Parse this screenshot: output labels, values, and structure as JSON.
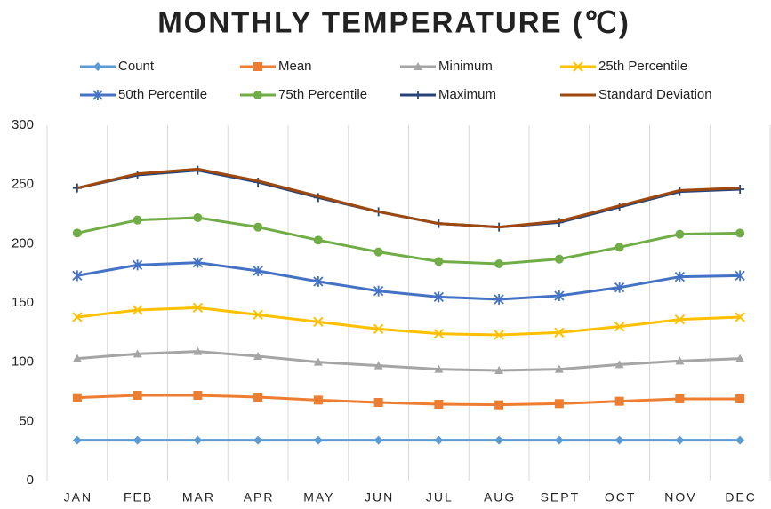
{
  "chart_data": {
    "type": "line",
    "title": "MONTHLY TEMPERATURE (℃)",
    "categories": [
      "JAN",
      "FEB",
      "MAR",
      "APR",
      "MAY",
      "JUN",
      "JUL",
      "AUG",
      "SEPT",
      "OCT",
      "NOV",
      "DEC"
    ],
    "ylim": [
      0,
      300
    ],
    "yticks": [
      0,
      50,
      100,
      150,
      200,
      250,
      300
    ],
    "grid": true,
    "series": [
      {
        "name": "Count",
        "color": "#5b9bd5",
        "marker": "diamond",
        "values": [
          34,
          34,
          34,
          34,
          34,
          34,
          34,
          34,
          34,
          34,
          34,
          34
        ]
      },
      {
        "name": "Mean",
        "color": "#ed7d31",
        "marker": "square",
        "values": [
          70,
          72,
          72,
          70.5,
          68,
          66,
          64.5,
          64,
          65,
          67,
          69,
          69
        ]
      },
      {
        "name": "Minimum",
        "color": "#a5a5a5",
        "marker": "triangle",
        "values": [
          103,
          107,
          109,
          105,
          100,
          97,
          94,
          93,
          94,
          98,
          101,
          103
        ]
      },
      {
        "name": "25th Percentile",
        "color": "#ffc000",
        "marker": "x",
        "values": [
          138,
          144,
          146,
          140,
          134,
          128,
          124,
          123,
          125,
          130,
          136,
          138
        ]
      },
      {
        "name": "50th Percentile",
        "color": "#4472c4",
        "marker": "star",
        "values": [
          173,
          182,
          184,
          177,
          168,
          160,
          155,
          153,
          156,
          163,
          172,
          173
        ]
      },
      {
        "name": "75th Percentile",
        "color": "#70ad47",
        "marker": "circle",
        "values": [
          209,
          220,
          222,
          214,
          203,
          193,
          185,
          183,
          187,
          197,
          208,
          209
        ]
      },
      {
        "name": "Maximum",
        "color": "#264478",
        "marker": "plus",
        "values": [
          247,
          258,
          262,
          252,
          239,
          227,
          217,
          214,
          218,
          231,
          244,
          246
        ]
      },
      {
        "name": "Standard Deviation",
        "color": "#9e480e",
        "marker": "none",
        "values": [
          247,
          259,
          263,
          253,
          240,
          227,
          217,
          214,
          219,
          232,
          245,
          247
        ]
      }
    ]
  }
}
